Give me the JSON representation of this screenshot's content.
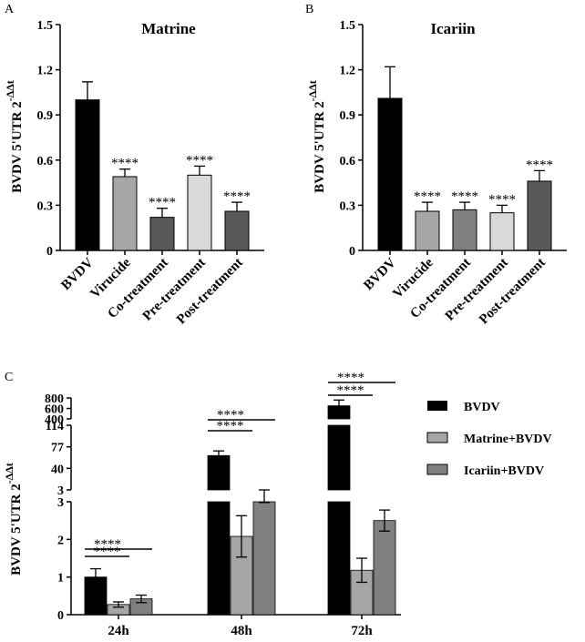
{
  "chart_data": [
    {
      "panel": "A",
      "type": "bar",
      "title": "Matrine",
      "ylabel": "BVDV 5'UTR 2",
      "ylabel_exponent": "-ΔΔt",
      "ylim": [
        0,
        1.5
      ],
      "yticks": [
        "0",
        "0.3",
        "0.6",
        "0.9",
        "1.2",
        "1.5"
      ],
      "categories": [
        "BVDV",
        "Virucide",
        "Co-treatment",
        "Pre-treatment",
        "Post-treatment"
      ],
      "values": [
        1.0,
        0.49,
        0.22,
        0.5,
        0.26
      ],
      "errors": [
        0.12,
        0.05,
        0.06,
        0.06,
        0.06
      ],
      "colors": [
        "#000000",
        "#a6a6a6",
        "#595959",
        "#d9d9d9",
        "#595959"
      ],
      "significance": [
        "",
        "****",
        "****",
        "****",
        "****"
      ]
    },
    {
      "panel": "B",
      "type": "bar",
      "title": "Icariin",
      "ylabel": "BVDV 5'UTR 2",
      "ylabel_exponent": "-ΔΔt",
      "ylim": [
        0,
        1.5
      ],
      "yticks": [
        "0",
        "0.3",
        "0.6",
        "0.9",
        "1.2",
        "1.5"
      ],
      "categories": [
        "BVDV",
        "Virucide",
        "Co-treatment",
        "Pre-treatment",
        "Post-treatment"
      ],
      "values": [
        1.01,
        0.26,
        0.27,
        0.25,
        0.46
      ],
      "errors": [
        0.21,
        0.06,
        0.05,
        0.05,
        0.07
      ],
      "colors": [
        "#000000",
        "#a6a6a6",
        "#808080",
        "#d9d9d9",
        "#595959"
      ],
      "significance": [
        "",
        "****",
        "****",
        "****",
        "****"
      ]
    },
    {
      "panel": "C",
      "type": "bar",
      "ylabel": "BVDV 5'UTR 2",
      "ylabel_exponent": "-ΔΔt",
      "segmented_axis": true,
      "yticks_lower": [
        "0",
        "1",
        "2",
        "3"
      ],
      "yticks_middle": [
        "3",
        "40",
        "77",
        "114"
      ],
      "yticks_upper": [
        "400",
        "600",
        "800"
      ],
      "categories": [
        "24h",
        "48h",
        "72h"
      ],
      "series": [
        {
          "name": "BVDV",
          "color": "#000000",
          "values": [
            1.0,
            62,
            650
          ],
          "errors": [
            0.22,
            8,
            110
          ]
        },
        {
          "name": "Matrine+BVDV",
          "color": "#a6a6a6",
          "values": [
            0.27,
            2.08,
            1.18
          ],
          "errors": [
            0.07,
            0.55,
            0.32
          ]
        },
        {
          "name": "Icariin+BVDV",
          "color": "#808080",
          "values": [
            0.42,
            3.0,
            2.5
          ],
          "errors": [
            0.1,
            0.02,
            0.28
          ]
        }
      ],
      "significance_brackets": [
        "****",
        "****",
        "****",
        "****",
        "****",
        "****"
      ]
    }
  ],
  "panel_labels": {
    "a": "A",
    "b": "B",
    "c": "C"
  }
}
